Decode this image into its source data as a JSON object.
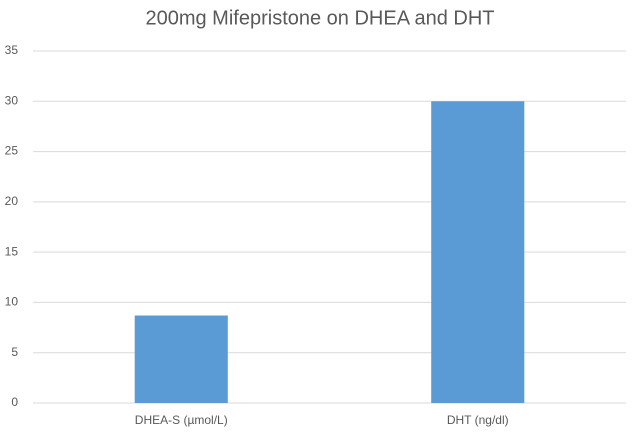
{
  "chart_data": {
    "type": "bar",
    "title": "200mg Mifepristone on DHEA and DHT",
    "categories": [
      "DHEA-S (µmol/L)",
      "DHT (ng/dl)"
    ],
    "values": [
      8.7,
      30
    ],
    "color": "#5b9bd5",
    "ylim": [
      0,
      35
    ],
    "yticks": [
      0,
      5,
      10,
      15,
      20,
      25,
      30,
      35
    ],
    "grid": true
  }
}
